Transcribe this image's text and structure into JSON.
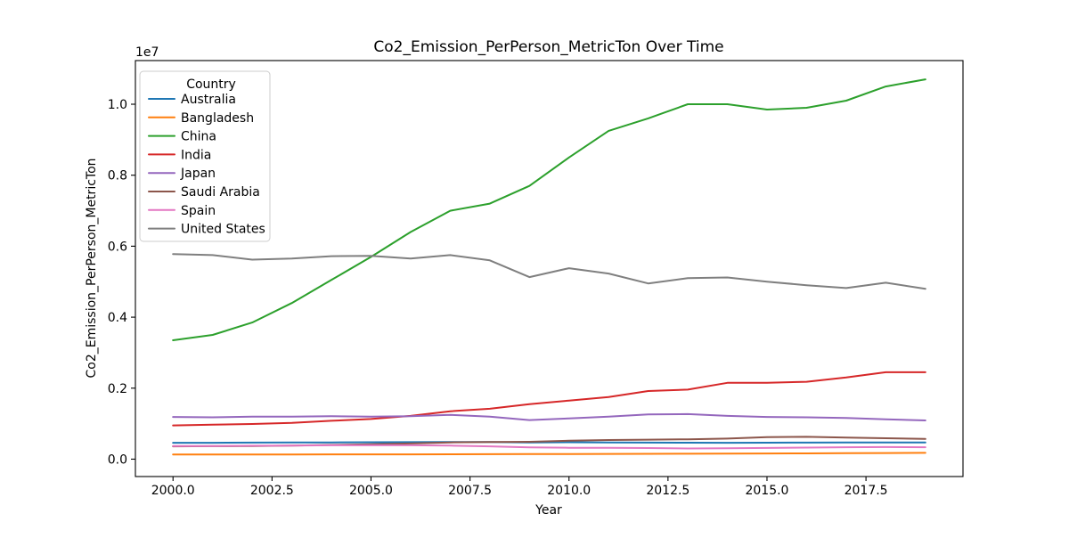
{
  "title": "Co2_Emission_PerPerson_MetricTon Over Time",
  "axes": {
    "xlabel": "Year",
    "ylabel": "Co2_Emission_PerPerson_MetricTon",
    "offset_text": "1e7",
    "x_ticks": [
      2000.0,
      2002.5,
      2005.0,
      2007.5,
      2010.0,
      2012.5,
      2015.0,
      2017.5
    ],
    "x_tick_labels": [
      "2000.0",
      "2002.5",
      "2005.0",
      "2007.5",
      "2010.0",
      "2012.5",
      "2015.0",
      "2017.5"
    ],
    "y_ticks": [
      0,
      2000000,
      4000000,
      6000000,
      8000000,
      10000000
    ],
    "y_tick_labels": [
      "0.0",
      "0.2",
      "0.4",
      "0.6",
      "0.8",
      "1.0"
    ]
  },
  "legend": {
    "title": "Country"
  },
  "chart_data": {
    "type": "line",
    "title": "Co2_Emission_PerPerson_MetricTon Over Time",
    "xlabel": "Year",
    "ylabel": "Co2_Emission_PerPerson_MetricTon",
    "grid": false,
    "legend_position": "upper left",
    "xlim": [
      1999.05,
      2019.95
    ],
    "ylim": [
      -490000,
      11230000
    ],
    "x": [
      2000,
      2001,
      2002,
      2003,
      2004,
      2005,
      2006,
      2007,
      2008,
      2009,
      2010,
      2011,
      2012,
      2013,
      2014,
      2015,
      2016,
      2017,
      2018,
      2019
    ],
    "series": [
      {
        "name": "Australia",
        "color": "#1f77b4",
        "values": [
          460000,
          462000,
          465000,
          468000,
          472000,
          475000,
          478000,
          480000,
          480000,
          472000,
          475000,
          470000,
          466000,
          464000,
          460000,
          463000,
          465000,
          468000,
          470000,
          472000
        ]
      },
      {
        "name": "Bangladesh",
        "color": "#ff7f0e",
        "values": [
          130000,
          131000,
          132000,
          133000,
          134000,
          135000,
          136000,
          138000,
          140000,
          142000,
          145000,
          148000,
          150000,
          153000,
          156000,
          160000,
          163000,
          167000,
          172000,
          178000
        ]
      },
      {
        "name": "China",
        "color": "#2ca02c",
        "values": [
          3350000,
          3500000,
          3850000,
          4400000,
          5050000,
          5700000,
          6400000,
          7000000,
          7200000,
          7700000,
          8500000,
          9250000,
          9600000,
          10000000,
          10000000,
          9850000,
          9900000,
          10100000,
          10500000,
          10700000
        ]
      },
      {
        "name": "India",
        "color": "#d62728",
        "values": [
          950000,
          970000,
          990000,
          1020000,
          1080000,
          1130000,
          1220000,
          1350000,
          1420000,
          1550000,
          1650000,
          1750000,
          1920000,
          1960000,
          2150000,
          2150000,
          2180000,
          2300000,
          2450000,
          2450000
        ]
      },
      {
        "name": "Japan",
        "color": "#9467bd",
        "values": [
          1190000,
          1180000,
          1200000,
          1200000,
          1210000,
          1200000,
          1210000,
          1250000,
          1200000,
          1100000,
          1150000,
          1200000,
          1260000,
          1270000,
          1220000,
          1190000,
          1180000,
          1160000,
          1120000,
          1090000
        ]
      },
      {
        "name": "Saudi Arabia",
        "color": "#8c564b",
        "values": [
          360000,
          365000,
          370000,
          380000,
          400000,
          420000,
          440000,
          470000,
          480000,
          490000,
          520000,
          540000,
          550000,
          560000,
          580000,
          620000,
          630000,
          610000,
          590000,
          570000
        ]
      },
      {
        "name": "Spain",
        "color": "#e377c2",
        "values": [
          370000,
          372000,
          378000,
          382000,
          390000,
          392000,
          390000,
          380000,
          360000,
          330000,
          320000,
          318000,
          312000,
          300000,
          305000,
          315000,
          325000,
          335000,
          340000,
          335000
        ]
      },
      {
        "name": "United States",
        "color": "#7f7f7f",
        "values": [
          5780000,
          5750000,
          5620000,
          5650000,
          5720000,
          5730000,
          5650000,
          5750000,
          5600000,
          5130000,
          5380000,
          5230000,
          4950000,
          5100000,
          5120000,
          5000000,
          4900000,
          4820000,
          4970000,
          4800000
        ]
      }
    ]
  }
}
